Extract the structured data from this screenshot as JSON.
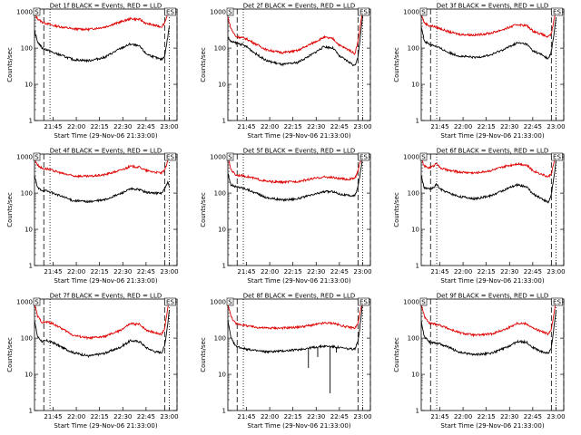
{
  "figure": {
    "start_time_label": "Start Time (29-Nov-06 21:33:00)",
    "y_axis_label": "Counts/sec",
    "legend_text": "BLACK = Events, RED = LLD",
    "x_ticks": [
      "21:45",
      "22:00",
      "22:15",
      "22:30",
      "22:45",
      "23:00"
    ],
    "y_ticks": [
      "1",
      "10",
      "100",
      "1000"
    ],
    "colors": {
      "events": "#000000",
      "lld": "#e00000"
    }
  },
  "chart_data": [
    {
      "type": "line",
      "title": "Det 1f BLACK = Events, RED = LLD",
      "xlabel": "Start Time (29-Nov-06 21:33:00)",
      "ylabel": "Counts/sec",
      "yscale": "log",
      "ylim": [
        1,
        1200
      ],
      "xlim_minutes": [
        0,
        92
      ],
      "x_ticks": [
        "21:45",
        "22:00",
        "22:15",
        "22:30",
        "22:45",
        "23:00"
      ],
      "dashed_markers_min": [
        6,
        84,
        92
      ],
      "dotted_markers_min": [
        10,
        87
      ],
      "corner_labels": [
        "S",
        "ES"
      ],
      "series": [
        {
          "name": "LLD",
          "color": "#e00000",
          "x": [
            0,
            2,
            5,
            8,
            12,
            18,
            25,
            35,
            45,
            55,
            62,
            68,
            72,
            78,
            82,
            84,
            86,
            87
          ],
          "y": [
            900,
            650,
            520,
            480,
            420,
            380,
            340,
            330,
            380,
            520,
            650,
            620,
            480,
            420,
            390,
            500,
            900,
            1100
          ]
        },
        {
          "name": "Events",
          "color": "#000000",
          "x": [
            0,
            2,
            5,
            8,
            12,
            18,
            25,
            35,
            45,
            55,
            62,
            68,
            72,
            78,
            82,
            84,
            86,
            87
          ],
          "y": [
            300,
            150,
            100,
            90,
            75,
            62,
            48,
            45,
            55,
            95,
            130,
            110,
            70,
            55,
            48,
            60,
            200,
            400
          ]
        }
      ]
    },
    {
      "type": "line",
      "title": "Det 2f BLACK = Events, RED = LLD",
      "xlabel": "Start Time (29-Nov-06 21:33:00)",
      "ylabel": "Counts/sec",
      "yscale": "log",
      "ylim": [
        1,
        1200
      ],
      "xlim_minutes": [
        0,
        92
      ],
      "x_ticks": [
        "21:45",
        "22:00",
        "22:15",
        "22:30",
        "22:45",
        "23:00"
      ],
      "dashed_markers_min": [
        6,
        84,
        92
      ],
      "dotted_markers_min": [
        10,
        87
      ],
      "corner_labels": [
        "S",
        "ES"
      ],
      "series": [
        {
          "name": "LLD",
          "color": "#e00000",
          "x": [
            0,
            2,
            5,
            8,
            12,
            18,
            25,
            35,
            45,
            55,
            62,
            68,
            72,
            78,
            82,
            84,
            86,
            87
          ],
          "y": [
            700,
            350,
            210,
            200,
            180,
            130,
            90,
            75,
            85,
            140,
            200,
            180,
            120,
            90,
            70,
            150,
            600,
            1000
          ]
        },
        {
          "name": "Events",
          "color": "#000000",
          "x": [
            0,
            2,
            5,
            8,
            12,
            18,
            25,
            35,
            45,
            55,
            62,
            68,
            72,
            78,
            82,
            84,
            86,
            87
          ],
          "y": [
            200,
            150,
            140,
            130,
            110,
            70,
            45,
            35,
            40,
            70,
            110,
            100,
            60,
            42,
            32,
            60,
            300,
            800
          ]
        }
      ]
    },
    {
      "type": "line",
      "title": "Det 3f BLACK = Events, RED = LLD",
      "xlabel": "Start Time (29-Nov-06 21:33:00)",
      "ylabel": "Counts/sec",
      "yscale": "log",
      "ylim": [
        1,
        1200
      ],
      "xlim_minutes": [
        0,
        92
      ],
      "x_ticks": [
        "21:45",
        "22:00",
        "22:15",
        "22:30",
        "22:45",
        "23:00"
      ],
      "dashed_markers_min": [
        6,
        84,
        92
      ],
      "dotted_markers_min": [
        10,
        87
      ],
      "corner_labels": [
        "S",
        "ES"
      ],
      "series": [
        {
          "name": "LLD",
          "color": "#e00000",
          "x": [
            0,
            2,
            5,
            8,
            12,
            18,
            25,
            35,
            45,
            55,
            62,
            68,
            72,
            78,
            82,
            84,
            86,
            87
          ],
          "y": [
            900,
            500,
            420,
            400,
            350,
            280,
            240,
            230,
            260,
            350,
            450,
            420,
            300,
            240,
            200,
            250,
            700,
            1100
          ]
        },
        {
          "name": "Events",
          "color": "#000000",
          "x": [
            0,
            2,
            5,
            8,
            12,
            18,
            25,
            35,
            45,
            55,
            62,
            68,
            72,
            78,
            82,
            84,
            86,
            87
          ],
          "y": [
            400,
            160,
            130,
            120,
            100,
            75,
            60,
            55,
            65,
            100,
            140,
            130,
            85,
            65,
            50,
            80,
            300,
            700
          ]
        }
      ]
    },
    {
      "type": "line",
      "title": "Det 4f BLACK = Events, RED = LLD",
      "xlabel": "Start Time (29-Nov-06 21:33:00)",
      "ylabel": "Counts/sec",
      "yscale": "log",
      "ylim": [
        1,
        1200
      ],
      "xlim_minutes": [
        0,
        92
      ],
      "x_ticks": [
        "21:45",
        "22:00",
        "22:15",
        "22:30",
        "22:45",
        "23:00"
      ],
      "dashed_markers_min": [
        6,
        84,
        92
      ],
      "dotted_markers_min": [
        10,
        87
      ],
      "corner_labels": [
        "S",
        "ES"
      ],
      "series": [
        {
          "name": "LLD",
          "color": "#e00000",
          "x": [
            0,
            2,
            5,
            8,
            12,
            18,
            25,
            35,
            45,
            55,
            62,
            68,
            72,
            78,
            82,
            84,
            86,
            87
          ],
          "y": [
            900,
            600,
            480,
            470,
            420,
            350,
            300,
            290,
            320,
            420,
            550,
            520,
            420,
            380,
            360,
            420,
            800,
            1000
          ]
        },
        {
          "name": "Events",
          "color": "#000000",
          "x": [
            0,
            2,
            5,
            8,
            12,
            18,
            25,
            35,
            45,
            55,
            62,
            68,
            72,
            78,
            82,
            84,
            86,
            87
          ],
          "y": [
            300,
            140,
            120,
            115,
            100,
            80,
            62,
            58,
            65,
            95,
            130,
            125,
            105,
            100,
            100,
            130,
            200,
            150
          ]
        }
      ]
    },
    {
      "type": "line",
      "title": "Det 5f BLACK = Events, RED = LLD",
      "xlabel": "Start Time (29-Nov-06 21:33:00)",
      "ylabel": "Counts/sec",
      "yscale": "log",
      "ylim": [
        1,
        1200
      ],
      "xlim_minutes": [
        0,
        92
      ],
      "x_ticks": [
        "21:45",
        "22:00",
        "22:15",
        "22:30",
        "22:45",
        "23:00"
      ],
      "dashed_markers_min": [
        6,
        84,
        92
      ],
      "dotted_markers_min": [
        10,
        87
      ],
      "corner_labels": [
        "S",
        "ES"
      ],
      "series": [
        {
          "name": "LLD",
          "color": "#e00000",
          "x": [
            0,
            2,
            5,
            8,
            12,
            18,
            25,
            35,
            45,
            55,
            62,
            68,
            72,
            78,
            82,
            84,
            86,
            87
          ],
          "y": [
            1000,
            450,
            320,
            310,
            290,
            250,
            210,
            200,
            210,
            250,
            280,
            270,
            250,
            240,
            260,
            400,
            900,
            1100
          ]
        },
        {
          "name": "Events",
          "color": "#000000",
          "x": [
            0,
            2,
            5,
            8,
            12,
            18,
            25,
            35,
            45,
            55,
            62,
            68,
            72,
            78,
            82,
            84,
            86,
            87
          ],
          "y": [
            350,
            170,
            150,
            145,
            130,
            100,
            75,
            65,
            70,
            90,
            110,
            110,
            95,
            85,
            85,
            150,
            500,
            900
          ]
        }
      ]
    },
    {
      "type": "line",
      "title": "Det 6f BLACK = Events, RED = LLD",
      "xlabel": "Start Time (29-Nov-06 21:33:00)",
      "ylabel": "Counts/sec",
      "yscale": "log",
      "ylim": [
        1,
        1200
      ],
      "xlim_minutes": [
        0,
        92
      ],
      "x_ticks": [
        "21:45",
        "22:00",
        "22:15",
        "22:30",
        "22:45",
        "23:00"
      ],
      "dashed_markers_min": [
        6,
        84,
        92
      ],
      "dotted_markers_min": [
        10,
        87
      ],
      "corner_labels": [
        "S",
        "ES"
      ],
      "series": [
        {
          "name": "LLD",
          "color": "#e00000",
          "x": [
            0,
            2,
            5,
            8,
            10,
            12,
            18,
            25,
            35,
            45,
            55,
            62,
            68,
            72,
            78,
            82,
            84,
            86,
            87
          ],
          "y": [
            900,
            550,
            500,
            560,
            700,
            500,
            420,
            380,
            360,
            420,
            560,
            650,
            600,
            420,
            330,
            280,
            350,
            800,
            1100
          ]
        },
        {
          "name": "Events",
          "color": "#000000",
          "x": [
            0,
            2,
            5,
            8,
            10,
            12,
            18,
            25,
            35,
            45,
            55,
            62,
            68,
            72,
            78,
            82,
            84,
            86,
            87
          ],
          "y": [
            300,
            140,
            130,
            140,
            180,
            130,
            100,
            80,
            70,
            85,
            130,
            170,
            150,
            95,
            70,
            55,
            90,
            350,
            800
          ]
        }
      ]
    },
    {
      "type": "line",
      "title": "Det 7f BLACK = Events, RED = LLD",
      "xlabel": "Start Time (29-Nov-06 21:33:00)",
      "ylabel": "Counts/sec",
      "yscale": "log",
      "ylim": [
        1,
        1200
      ],
      "xlim_minutes": [
        0,
        92
      ],
      "x_ticks": [
        "21:45",
        "22:00",
        "22:15",
        "22:30",
        "22:45",
        "23:00"
      ],
      "dashed_markers_min": [
        6,
        84,
        92
      ],
      "dotted_markers_min": [
        10,
        87
      ],
      "corner_labels": [
        "S",
        "ES"
      ],
      "series": [
        {
          "name": "LLD",
          "color": "#e00000",
          "x": [
            0,
            2,
            5,
            8,
            12,
            18,
            25,
            35,
            45,
            55,
            62,
            68,
            72,
            78,
            82,
            84,
            86,
            87
          ],
          "y": [
            900,
            400,
            270,
            280,
            250,
            180,
            120,
            100,
            110,
            160,
            250,
            240,
            170,
            140,
            130,
            180,
            700,
            1100
          ]
        },
        {
          "name": "Events",
          "color": "#000000",
          "x": [
            0,
            2,
            5,
            8,
            12,
            18,
            25,
            35,
            45,
            55,
            62,
            68,
            72,
            78,
            82,
            84,
            86,
            87
          ],
          "y": [
            300,
            110,
            80,
            85,
            75,
            55,
            40,
            32,
            38,
            55,
            85,
            80,
            55,
            42,
            40,
            60,
            250,
            600
          ]
        }
      ]
    },
    {
      "type": "line",
      "title": "Det 8f BLACK = Events, RED = LLD",
      "xlabel": "Start Time (29-Nov-06 21:33:00)",
      "ylabel": "Counts/sec",
      "yscale": "log",
      "ylim": [
        1,
        1200
      ],
      "xlim_minutes": [
        0,
        92
      ],
      "x_ticks": [
        "21:45",
        "22:00",
        "22:15",
        "22:30",
        "22:45",
        "23:00"
      ],
      "dashed_markers_min": [
        6,
        84,
        92
      ],
      "dotted_markers_min": [
        10,
        87
      ],
      "corner_labels": [
        "S",
        "ES"
      ],
      "series": [
        {
          "name": "LLD",
          "color": "#e00000",
          "x": [
            0,
            2,
            5,
            8,
            12,
            18,
            25,
            35,
            45,
            55,
            62,
            68,
            72,
            78,
            82,
            84,
            86,
            87
          ],
          "y": [
            900,
            400,
            250,
            240,
            220,
            200,
            190,
            190,
            200,
            230,
            260,
            260,
            230,
            200,
            190,
            250,
            700,
            1100
          ]
        },
        {
          "name": "Events",
          "color": "#000000",
          "x": [
            0,
            2,
            5,
            8,
            12,
            18,
            25,
            35,
            45,
            55,
            62,
            68,
            72,
            78,
            82,
            84,
            86,
            87
          ],
          "y": [
            300,
            100,
            60,
            55,
            50,
            45,
            42,
            44,
            48,
            55,
            60,
            58,
            55,
            50,
            50,
            80,
            400,
            900
          ]
        }
      ],
      "dropouts": [
        {
          "x": 52,
          "y": 15
        },
        {
          "x": 58,
          "y": 30
        },
        {
          "x": 66,
          "y": 3
        },
        {
          "x": 70,
          "y": 40
        }
      ]
    },
    {
      "type": "line",
      "title": "Det 9f BLACK = Events, RED = LLD",
      "xlabel": "Start Time (29-Nov-06 21:33:00)",
      "ylabel": "Counts/sec",
      "yscale": "log",
      "ylim": [
        1,
        1200
      ],
      "xlim_minutes": [
        0,
        92
      ],
      "x_ticks": [
        "21:45",
        "22:00",
        "22:15",
        "22:30",
        "22:45",
        "23:00"
      ],
      "dashed_markers_min": [
        6,
        84,
        92
      ],
      "dotted_markers_min": [
        10,
        87
      ],
      "corner_labels": [
        "S",
        "ES"
      ],
      "series": [
        {
          "name": "LLD",
          "color": "#e00000",
          "x": [
            0,
            2,
            5,
            8,
            12,
            18,
            25,
            35,
            45,
            55,
            62,
            68,
            72,
            78,
            82,
            84,
            86,
            87
          ],
          "y": [
            900,
            400,
            260,
            250,
            230,
            180,
            140,
            120,
            130,
            180,
            260,
            250,
            190,
            150,
            130,
            170,
            600,
            1100
          ]
        },
        {
          "name": "Events",
          "color": "#000000",
          "x": [
            0,
            2,
            5,
            8,
            12,
            18,
            25,
            35,
            45,
            55,
            62,
            68,
            72,
            78,
            82,
            84,
            86,
            87
          ],
          "y": [
            300,
            110,
            80,
            75,
            70,
            55,
            40,
            35,
            38,
            55,
            80,
            78,
            55,
            42,
            38,
            55,
            250,
            600
          ]
        }
      ]
    }
  ]
}
